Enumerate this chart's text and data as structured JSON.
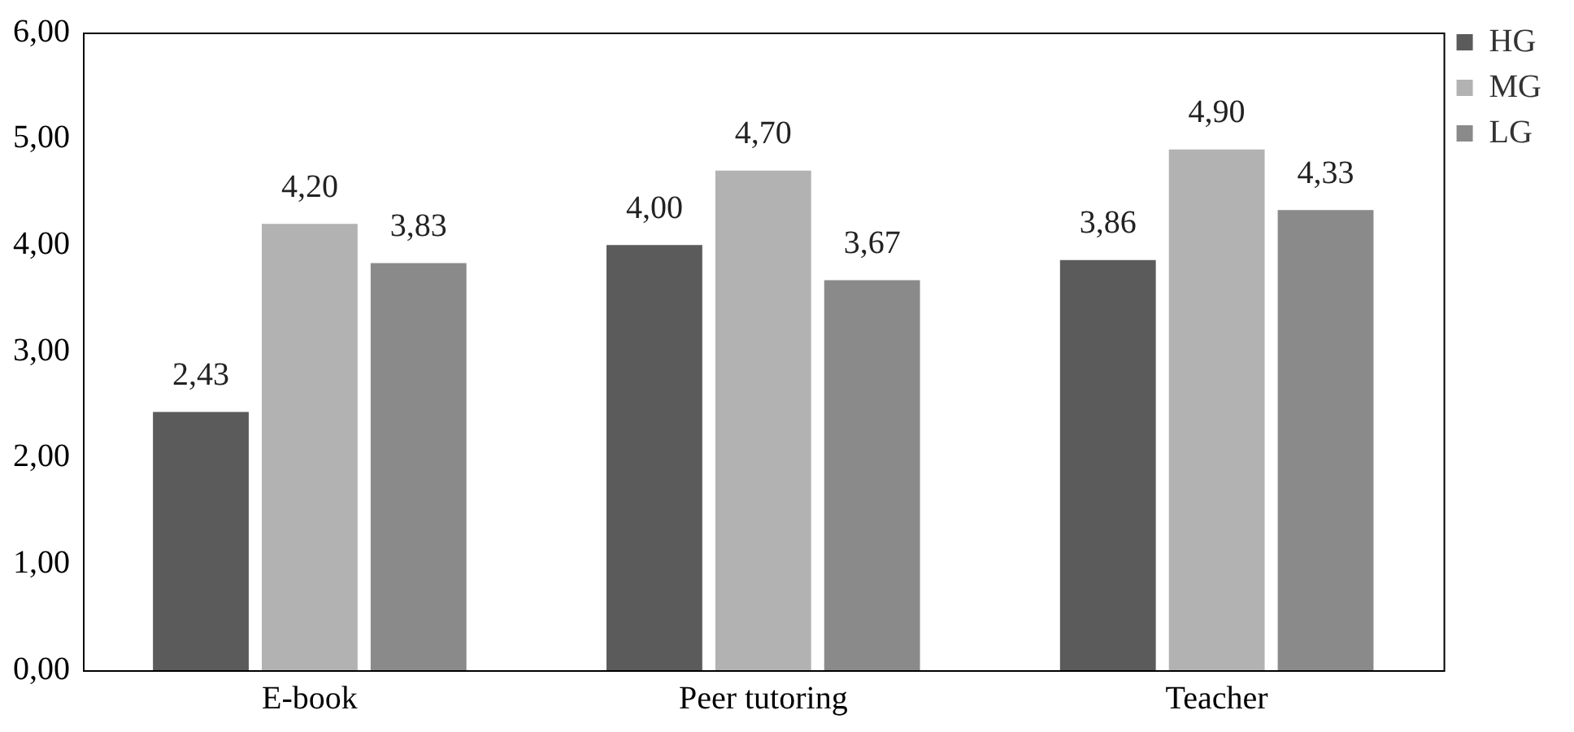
{
  "chart_data": {
    "type": "bar",
    "categories": [
      "E-book",
      "Peer tutoring",
      "Teacher"
    ],
    "series": [
      {
        "name": "HG",
        "color": "#5b5b5b",
        "values": [
          2.43,
          4.0,
          3.86
        ],
        "value_labels": [
          "2,43",
          "4,00",
          "3,86"
        ]
      },
      {
        "name": "MG",
        "color": "#b2b2b2",
        "values": [
          4.2,
          4.7,
          4.9
        ],
        "value_labels": [
          "4,20",
          "4,70",
          "4,90"
        ]
      },
      {
        "name": "LG",
        "color": "#8a8a8a",
        "values": [
          3.83,
          3.67,
          4.33
        ],
        "value_labels": [
          "3,83",
          "3,67",
          "4,33"
        ]
      }
    ],
    "ylim": [
      0,
      6
    ],
    "yticks": [
      {
        "value": 0,
        "label": "0,00"
      },
      {
        "value": 1,
        "label": "1,00"
      },
      {
        "value": 2,
        "label": "2,00"
      },
      {
        "value": 3,
        "label": "3,00"
      },
      {
        "value": 4,
        "label": "4,00"
      },
      {
        "value": 5,
        "label": "5,00"
      },
      {
        "value": 6,
        "label": "6,00"
      }
    ],
    "grid": false,
    "legend": "top right"
  }
}
